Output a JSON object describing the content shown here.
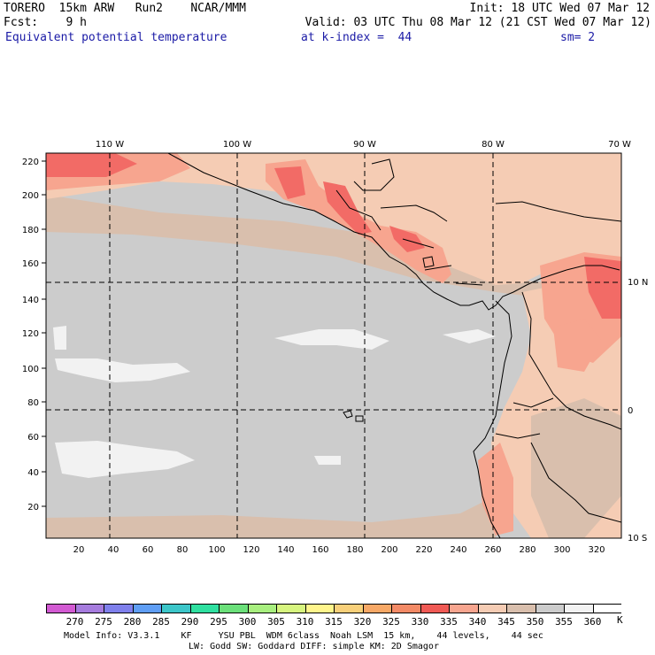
{
  "header": {
    "line1_left": "TORERO  15km ARW   Run2    NCAR/MMM",
    "line1_right": "Init: 18 UTC Wed 07 Mar 12",
    "line2_left": "Fcst:    9 h",
    "line2_right": "Valid: 03 UTC Thu 08 Mar 12 (21 CST Wed 07 Mar 12)",
    "field": "Equivalent potential temperature",
    "level": "at k-index =  44",
    "smoothing": "sm= 2"
  },
  "map": {
    "lon_labels": [
      "110 W",
      "100 W",
      "90 W",
      "80 W",
      "70 W"
    ],
    "lat_labels": [
      "10 N",
      "0",
      "10 S"
    ],
    "y_ticks": [
      "220",
      "200",
      "180",
      "160",
      "140",
      "120",
      "100",
      "80",
      "60",
      "40",
      "20"
    ],
    "x_ticks": [
      "20",
      "40",
      "60",
      "80",
      "100",
      "120",
      "140",
      "160",
      "180",
      "200",
      "220",
      "240",
      "260",
      "280",
      "300",
      "320"
    ],
    "colors": {
      "base": "#cccccc",
      "level_345": "#d9bfad",
      "level_340": "#f5ccb4",
      "level_335": "#f7a58f",
      "level_330": "#f26b66",
      "level_355": "#f2f2f2",
      "land": "#d1b7a6"
    }
  },
  "colorbar": {
    "labels": [
      "270",
      "275",
      "280",
      "285",
      "290",
      "295",
      "300",
      "305",
      "310",
      "315",
      "320",
      "325",
      "330",
      "335",
      "340",
      "345",
      "350",
      "355",
      "360"
    ],
    "unit": "K",
    "colors": [
      "#d25ad2",
      "#a67cde",
      "#7f80ec",
      "#5f9ef5",
      "#3cc6c9",
      "#2fe0a0",
      "#6be07a",
      "#a8ef7f",
      "#d7f57f",
      "#fff58c",
      "#f8d07a",
      "#f7a866",
      "#f38a66",
      "#f05a55",
      "#f7a58f",
      "#f5ccb4",
      "#d9bfad",
      "#cccccc",
      "#f2f2f2",
      "#ffffff"
    ]
  },
  "footer": {
    "line1": "Model Info: V3.3.1    KF     YSU PBL  WDM 6class  Noah LSM  15 km,    44 levels,    44 sec",
    "line2": "LW: Godd SW: Goddard DIFF: simple KM: 2D Smagor"
  }
}
